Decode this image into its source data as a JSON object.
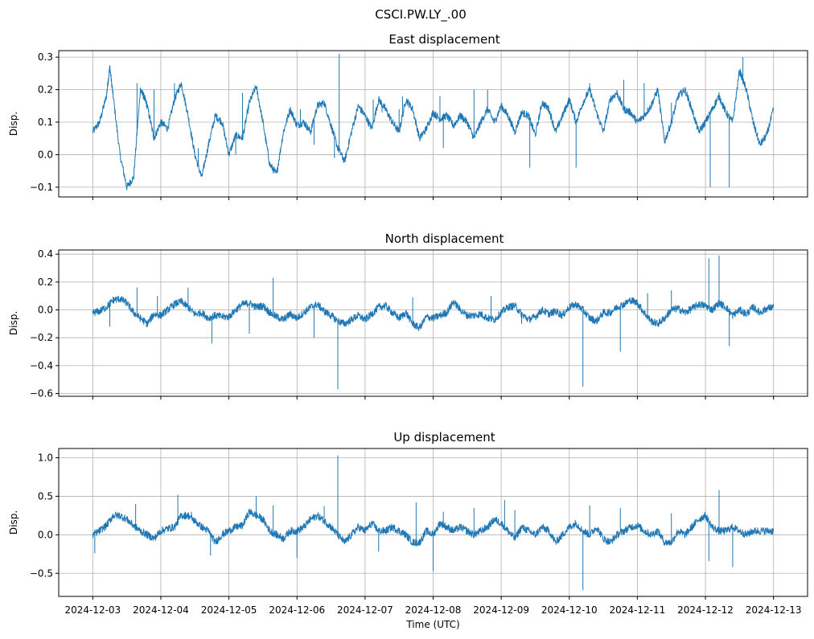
{
  "figure_title": "CSCI.PW.LY_.00",
  "chart_data": [
    {
      "type": "line",
      "title": "East displacement",
      "ylabel": "Disp.",
      "xlabel": "",
      "grid": true,
      "color": "#1f77b4",
      "ylim": [
        -0.13,
        0.32
      ],
      "yticks": [
        -0.1,
        0.0,
        0.1,
        0.2,
        0.3
      ],
      "ytick_labels": [
        "−0.1",
        "0.0",
        "0.1",
        "0.2",
        "0.3"
      ],
      "xlim": [
        -0.5,
        10.5
      ],
      "xticks": [
        0,
        1,
        2,
        3,
        4,
        5,
        6,
        7,
        8,
        9,
        10
      ],
      "show_xtick_labels": false,
      "series": [
        {
          "x": [
            0,
            0.1,
            0.2,
            0.25,
            0.3,
            0.4,
            0.5,
            0.6,
            0.7,
            0.75,
            0.8,
            0.9,
            1,
            1.1,
            1.2,
            1.3,
            1.4,
            1.5,
            1.6,
            1.7,
            1.8,
            1.9,
            2,
            2.1,
            2.2,
            2.3,
            2.4,
            2.5,
            2.6,
            2.7,
            2.8,
            2.9,
            3,
            3.1,
            3.2,
            3.3,
            3.4,
            3.5,
            3.6,
            3.7,
            3.8,
            3.9,
            4,
            4.1,
            4.2,
            4.3,
            4.4,
            4.5,
            4.6,
            4.7,
            4.8,
            4.9,
            5,
            5.1,
            5.2,
            5.3,
            5.4,
            5.5,
            5.6,
            5.7,
            5.8,
            5.9,
            6,
            6.1,
            6.2,
            6.3,
            6.4,
            6.5,
            6.6,
            6.7,
            6.8,
            6.9,
            7,
            7.1,
            7.2,
            7.3,
            7.4,
            7.5,
            7.6,
            7.7,
            7.8,
            7.9,
            8,
            8.1,
            8.2,
            8.3,
            8.4,
            8.5,
            8.6,
            8.7,
            8.8,
            8.9,
            9,
            9.1,
            9.2,
            9.3,
            9.4,
            9.5,
            9.6,
            9.7,
            9.8,
            9.9,
            10
          ],
          "y": [
            0.07,
            0.1,
            0.18,
            0.27,
            0.18,
            0.0,
            -0.1,
            -0.07,
            0.2,
            0.18,
            0.15,
            0.05,
            0.1,
            0.08,
            0.17,
            0.22,
            0.12,
            0.0,
            -0.07,
            0.03,
            0.12,
            0.1,
            0.0,
            0.06,
            0.05,
            0.16,
            0.21,
            0.1,
            -0.03,
            -0.06,
            0.07,
            0.14,
            0.09,
            0.1,
            0.07,
            0.15,
            0.16,
            0.09,
            0.02,
            -0.02,
            0.07,
            0.15,
            0.12,
            0.08,
            0.17,
            0.14,
            0.1,
            0.07,
            0.17,
            0.14,
            0.05,
            0.08,
            0.13,
            0.11,
            0.12,
            0.09,
            0.12,
            0.1,
            0.05,
            0.1,
            0.14,
            0.1,
            0.15,
            0.12,
            0.07,
            0.13,
            0.12,
            0.06,
            0.16,
            0.14,
            0.07,
            0.12,
            0.17,
            0.1,
            0.16,
            0.2,
            0.13,
            0.07,
            0.17,
            0.19,
            0.14,
            0.13,
            0.1,
            0.12,
            0.15,
            0.2,
            0.04,
            0.1,
            0.18,
            0.2,
            0.14,
            0.07,
            0.1,
            0.14,
            0.18,
            0.13,
            0.1,
            0.26,
            0.2,
            0.1,
            0.03,
            0.06,
            0.14
          ],
          "spikes": [
            [
              0.65,
              0.22
            ],
            [
              0.9,
              0.2
            ],
            [
              1.55,
              0.02
            ],
            [
              2.1,
              0.0
            ],
            [
              3.05,
              0.14
            ],
            [
              3.25,
              0.03
            ],
            [
              3.62,
              0.31
            ],
            [
              4.12,
              0.17
            ],
            [
              4.25,
              0.13
            ],
            [
              4.5,
              0.14
            ],
            [
              4.55,
              0.18
            ],
            [
              5.1,
              0.18
            ],
            [
              5.15,
              0.02
            ],
            [
              5.3,
              0.08
            ],
            [
              5.6,
              0.2
            ],
            [
              6.42,
              -0.04
            ],
            [
              7.1,
              -0.04
            ],
            [
              7.3,
              0.22
            ],
            [
              8.1,
              0.22
            ],
            [
              8.5,
              0.16
            ],
            [
              9.07,
              -0.1
            ],
            [
              9.35,
              -0.1
            ],
            [
              9.55,
              0.3
            ],
            [
              3.55,
              -0.01
            ],
            [
              2.2,
              0.19
            ],
            [
              1.2,
              0.22
            ],
            [
              7.8,
              0.23
            ],
            [
              5.8,
              0.2
            ]
          ]
        }
      ]
    },
    {
      "type": "line",
      "title": "North displacement",
      "ylabel": "Disp.",
      "xlabel": "",
      "grid": true,
      "color": "#1f77b4",
      "ylim": [
        -0.62,
        0.43
      ],
      "yticks": [
        -0.6,
        -0.4,
        -0.2,
        0.0,
        0.2,
        0.4
      ],
      "ytick_labels": [
        "−0.6",
        "−0.4",
        "−0.2",
        "0.0",
        "0.2",
        "0.4"
      ],
      "xlim": [
        -0.5,
        10.5
      ],
      "xticks": [
        0,
        1,
        2,
        3,
        4,
        5,
        6,
        7,
        8,
        9,
        10
      ],
      "show_xtick_labels": false,
      "series": [
        {
          "x": [
            0,
            0.1,
            0.2,
            0.3,
            0.4,
            0.5,
            0.6,
            0.7,
            0.8,
            0.9,
            1,
            1.1,
            1.2,
            1.3,
            1.4,
            1.5,
            1.6,
            1.7,
            1.8,
            1.9,
            2,
            2.1,
            2.2,
            2.3,
            2.4,
            2.5,
            2.6,
            2.7,
            2.8,
            2.9,
            3,
            3.1,
            3.2,
            3.3,
            3.4,
            3.5,
            3.6,
            3.7,
            3.8,
            3.9,
            4,
            4.1,
            4.2,
            4.3,
            4.4,
            4.5,
            4.6,
            4.7,
            4.8,
            4.9,
            5,
            5.1,
            5.2,
            5.3,
            5.4,
            5.5,
            5.6,
            5.7,
            5.8,
            5.9,
            6,
            6.1,
            6.2,
            6.3,
            6.4,
            6.5,
            6.6,
            6.7,
            6.8,
            6.9,
            7,
            7.1,
            7.2,
            7.3,
            7.4,
            7.5,
            7.6,
            7.7,
            7.8,
            7.9,
            8,
            8.1,
            8.2,
            8.3,
            8.4,
            8.5,
            8.6,
            8.7,
            8.8,
            8.9,
            9,
            9.1,
            9.2,
            9.3,
            9.4,
            9.5,
            9.6,
            9.7,
            9.8,
            9.9,
            10
          ],
          "y": [
            -0.02,
            -0.01,
            0.02,
            0.07,
            0.08,
            0.05,
            -0.02,
            -0.06,
            -0.1,
            -0.03,
            -0.04,
            0.0,
            0.04,
            0.06,
            0.02,
            -0.03,
            -0.02,
            -0.06,
            -0.04,
            -0.05,
            -0.05,
            0.0,
            0.04,
            0.05,
            0.02,
            0.03,
            -0.02,
            -0.05,
            -0.07,
            -0.03,
            -0.06,
            -0.02,
            0.02,
            0.04,
            -0.01,
            -0.04,
            -0.08,
            -0.1,
            -0.07,
            -0.04,
            -0.07,
            -0.03,
            0.02,
            0.03,
            -0.02,
            -0.06,
            -0.02,
            -0.1,
            -0.13,
            -0.05,
            -0.06,
            -0.04,
            -0.02,
            0.06,
            0.0,
            -0.04,
            -0.04,
            -0.03,
            -0.06,
            -0.07,
            -0.02,
            0.02,
            0.03,
            -0.03,
            -0.07,
            -0.05,
            0.0,
            -0.03,
            -0.01,
            -0.04,
            0.02,
            0.04,
            0.0,
            -0.06,
            -0.08,
            -0.02,
            -0.02,
            0.02,
            0.04,
            0.07,
            0.05,
            -0.02,
            -0.08,
            -0.1,
            -0.06,
            0.0,
            0.01,
            -0.02,
            0.01,
            0.04,
            0.03,
            0.0,
            0.05,
            0.02,
            -0.04,
            0.0,
            -0.03,
            0.02,
            -0.02,
            0.01,
            0.02
          ],
          "spikes": [
            [
              0.25,
              -0.12
            ],
            [
              0.65,
              0.16
            ],
            [
              1.4,
              0.16
            ],
            [
              1.75,
              -0.24
            ],
            [
              2.3,
              -0.17
            ],
            [
              2.65,
              0.23
            ],
            [
              3.25,
              -0.2
            ],
            [
              3.6,
              -0.57
            ],
            [
              6.3,
              -0.1
            ],
            [
              7.2,
              -0.55
            ],
            [
              7.75,
              -0.3
            ],
            [
              8.5,
              0.14
            ],
            [
              9.05,
              0.37
            ],
            [
              9.2,
              0.39
            ],
            [
              9.35,
              -0.26
            ],
            [
              0.95,
              0.1
            ],
            [
              4.7,
              0.09
            ],
            [
              5.85,
              0.1
            ],
            [
              8.15,
              0.12
            ]
          ]
        }
      ]
    },
    {
      "type": "line",
      "title": "Up displacement",
      "ylabel": "Disp.",
      "xlabel": "Time (UTC)",
      "grid": true,
      "color": "#1f77b4",
      "ylim": [
        -0.8,
        1.12
      ],
      "yticks": [
        -0.5,
        0.0,
        0.5,
        1.0
      ],
      "ytick_labels": [
        "−0.5",
        "0.0",
        "0.5",
        "1.0"
      ],
      "xlim": [
        -0.5,
        10.5
      ],
      "xticks": [
        0,
        1,
        2,
        3,
        4,
        5,
        6,
        7,
        8,
        9,
        10
      ],
      "xtick_labels": [
        "2024-12-03",
        "2024-12-04",
        "2024-12-05",
        "2024-12-06",
        "2024-12-07",
        "2024-12-08",
        "2024-12-09",
        "2024-12-10",
        "2024-12-11",
        "2024-12-12",
        "2024-12-13"
      ],
      "show_xtick_labels": true,
      "series": [
        {
          "x": [
            0,
            0.1,
            0.2,
            0.3,
            0.4,
            0.5,
            0.6,
            0.7,
            0.8,
            0.9,
            1,
            1.1,
            1.2,
            1.3,
            1.4,
            1.5,
            1.6,
            1.7,
            1.8,
            1.9,
            2,
            2.1,
            2.2,
            2.3,
            2.4,
            2.5,
            2.6,
            2.7,
            2.8,
            2.9,
            3,
            3.1,
            3.2,
            3.3,
            3.4,
            3.5,
            3.6,
            3.7,
            3.8,
            3.9,
            4,
            4.1,
            4.2,
            4.3,
            4.4,
            4.5,
            4.6,
            4.7,
            4.8,
            4.9,
            5,
            5.1,
            5.2,
            5.3,
            5.4,
            5.5,
            5.6,
            5.7,
            5.8,
            5.9,
            6,
            6.1,
            6.2,
            6.3,
            6.4,
            6.5,
            6.6,
            6.7,
            6.8,
            6.9,
            7,
            7.1,
            7.2,
            7.3,
            7.4,
            7.5,
            7.6,
            7.7,
            7.8,
            7.9,
            8,
            8.1,
            8.2,
            8.3,
            8.4,
            8.5,
            8.6,
            8.7,
            8.8,
            8.9,
            9,
            9.1,
            9.2,
            9.3,
            9.4,
            9.5,
            9.6,
            9.7,
            9.8,
            9.9,
            10
          ],
          "y": [
            0.0,
            0.05,
            0.12,
            0.25,
            0.25,
            0.2,
            0.12,
            0.05,
            0.0,
            -0.05,
            0.05,
            0.08,
            0.1,
            0.25,
            0.25,
            0.18,
            0.1,
            0.05,
            -0.1,
            0.0,
            0.05,
            0.1,
            0.12,
            0.3,
            0.25,
            0.2,
            0.05,
            0.0,
            -0.05,
            0.05,
            0.05,
            0.1,
            0.2,
            0.25,
            0.18,
            0.1,
            0.0,
            -0.1,
            0.0,
            0.1,
            0.05,
            0.15,
            0.05,
            0.05,
            0.1,
            0.05,
            0.0,
            -0.1,
            -0.1,
            0.05,
            0.0,
            0.15,
            0.1,
            0.05,
            0.1,
            0.05,
            0.0,
            0.05,
            0.1,
            0.2,
            0.15,
            0.05,
            -0.05,
            0.1,
            0.05,
            0.0,
            0.1,
            0.05,
            -0.1,
            0.0,
            0.1,
            0.15,
            0.05,
            0.0,
            0.1,
            -0.05,
            -0.1,
            0.0,
            0.05,
            0.1,
            0.12,
            0.05,
            0.0,
            0.05,
            -0.1,
            -0.1,
            0.05,
            0.0,
            0.1,
            0.2,
            0.25,
            0.1,
            0.05,
            0.05,
            0.1,
            0.05,
            0.0,
            0.05,
            0.05,
            0.05,
            0.05
          ],
          "spikes": [
            [
              0.03,
              -0.24
            ],
            [
              0.63,
              0.4
            ],
            [
              1.25,
              0.52
            ],
            [
              1.73,
              -0.27
            ],
            [
              2.4,
              0.5
            ],
            [
              2.65,
              0.38
            ],
            [
              3.0,
              -0.3
            ],
            [
              3.6,
              1.03
            ],
            [
              4.2,
              -0.22
            ],
            [
              4.75,
              0.42
            ],
            [
              5.0,
              -0.47
            ],
            [
              5.15,
              0.3
            ],
            [
              5.6,
              0.35
            ],
            [
              6.05,
              0.45
            ],
            [
              7.2,
              -0.72
            ],
            [
              7.3,
              0.38
            ],
            [
              7.75,
              0.35
            ],
            [
              9.05,
              -0.34
            ],
            [
              9.2,
              0.58
            ],
            [
              9.4,
              -0.42
            ],
            [
              6.2,
              0.32
            ],
            [
              8.5,
              0.28
            ],
            [
              3.4,
              0.37
            ],
            [
              1.45,
              0.3
            ]
          ]
        }
      ]
    }
  ]
}
